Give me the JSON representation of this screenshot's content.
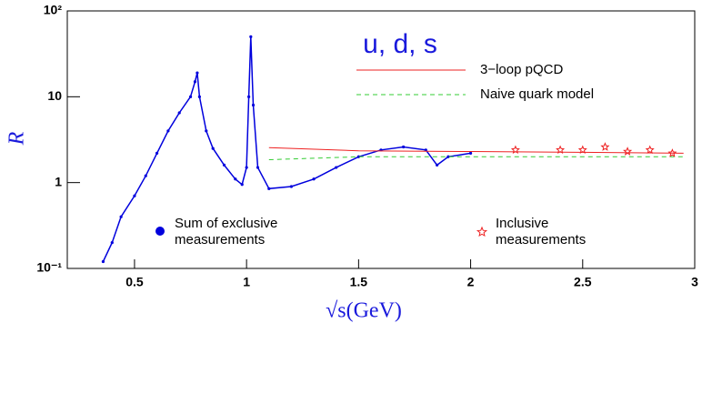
{
  "chart_data": {
    "type": "line",
    "title": "u, d, s",
    "x_label": "√s(GeV)",
    "y_label": "R",
    "xlim": [
      0.2,
      3
    ],
    "ylim": [
      0.1,
      100
    ],
    "log_y": true,
    "xticks": [
      0.5,
      1,
      1.5,
      2,
      2.5,
      3
    ],
    "yticks": [
      {
        "value": 0.1,
        "label": "10⁻¹"
      },
      1,
      10,
      {
        "value": 100,
        "label": "10²"
      }
    ],
    "series": [
      {
        "name": "Sum of exclusive measurements",
        "color": "#0000dd",
        "style": "line-points",
        "x": [
          0.36,
          0.4,
          0.44,
          0.5,
          0.55,
          0.6,
          0.65,
          0.7,
          0.75,
          0.77,
          0.78,
          0.79,
          0.82,
          0.85,
          0.9,
          0.95,
          0.98,
          1.0,
          1.01,
          1.019,
          1.03,
          1.05,
          1.1,
          1.2,
          1.3,
          1.4,
          1.5,
          1.6,
          1.7,
          1.8,
          1.85,
          1.9,
          2.0
        ],
        "values": [
          0.12,
          0.2,
          0.4,
          0.7,
          1.2,
          2.2,
          4,
          6.5,
          10,
          15,
          19,
          10,
          4,
          2.5,
          1.6,
          1.1,
          0.95,
          1.5,
          10,
          50,
          8,
          1.5,
          0.85,
          0.9,
          1.1,
          1.5,
          2,
          2.4,
          2.6,
          2.4,
          1.6,
          2,
          2.2
        ]
      },
      {
        "name": "3−loop pQCD",
        "color": "#ee2222",
        "style": "line",
        "x": [
          1.1,
          1.5,
          2.0,
          2.5,
          2.95
        ],
        "values": [
          2.55,
          2.35,
          2.3,
          2.25,
          2.2
        ]
      },
      {
        "name": "Naive quark model",
        "color": "#33cc33",
        "style": "dashed",
        "x": [
          1.1,
          1.5,
          2.0,
          2.5,
          2.95
        ],
        "values": [
          1.85,
          2.0,
          2.0,
          2.0,
          2.0
        ]
      },
      {
        "name": "Inclusive measurements",
        "color": "#ee2222",
        "style": "stars",
        "x": [
          2.2,
          2.4,
          2.5,
          2.6,
          2.7,
          2.8,
          2.9
        ],
        "values": [
          2.4,
          2.4,
          2.4,
          2.6,
          2.3,
          2.4,
          2.2
        ]
      }
    ]
  }
}
